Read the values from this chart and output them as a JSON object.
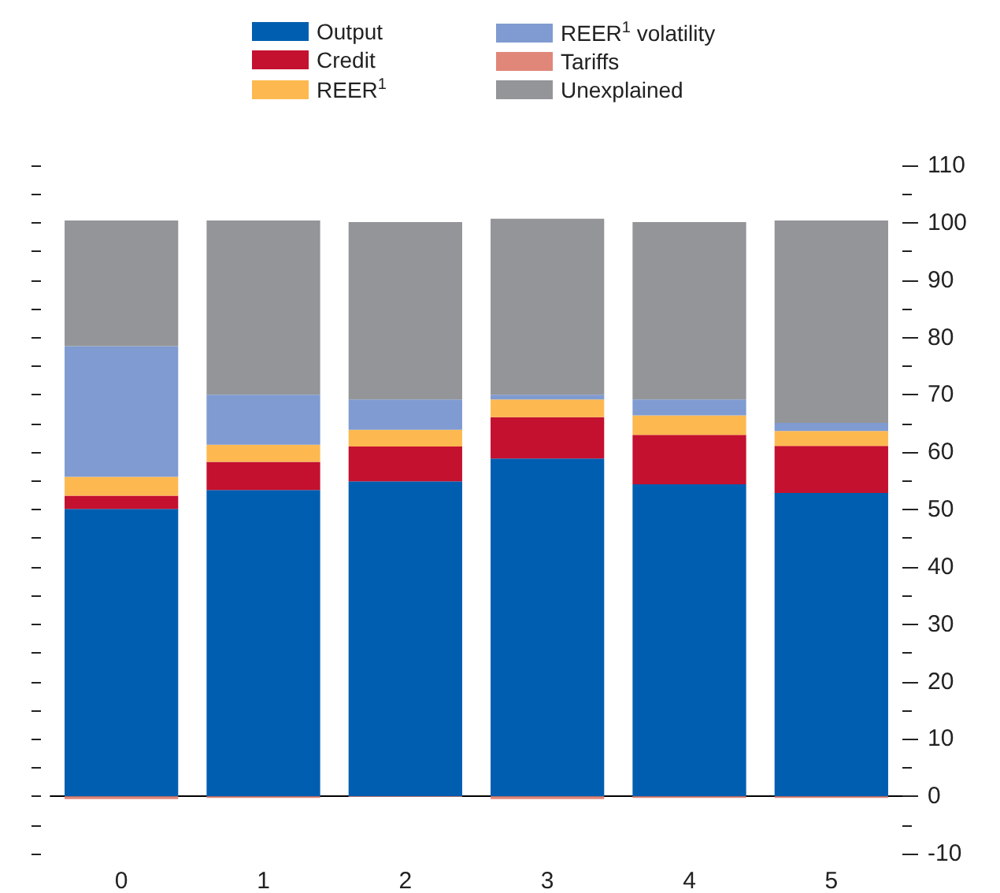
{
  "chart_data": {
    "type": "bar",
    "stacked": true,
    "categories": [
      "0",
      "1",
      "2",
      "3",
      "4",
      "5"
    ],
    "series": [
      {
        "name": "Output",
        "color": "#005eb0",
        "values": [
          50.1,
          53.4,
          54.9,
          58.9,
          54.4,
          52.9
        ]
      },
      {
        "name": "Credit",
        "color": "#c4112f",
        "values": [
          2.3,
          4.9,
          6.1,
          7.2,
          8.6,
          8.2
        ]
      },
      {
        "name": "REER$^{1}$",
        "color": "#fdb950",
        "values": [
          3.3,
          3.0,
          2.9,
          3.1,
          3.4,
          2.6
        ]
      },
      {
        "name": "REER$^{1}$ volatility",
        "color": "#7f9bd1",
        "values": [
          22.8,
          8.7,
          5.3,
          0.8,
          2.8,
          1.4
        ]
      },
      {
        "name": "Tariffs",
        "color": "#e0877a",
        "values": [
          -0.5,
          -0.3,
          -0.1,
          -0.5,
          -0.3,
          -0.3
        ]
      },
      {
        "name": "Unexplained",
        "color": "#939598",
        "values": [
          21.9,
          30.4,
          30.9,
          30.7,
          30.9,
          35.3
        ]
      }
    ],
    "ylim": [
      -10,
      110
    ],
    "yticks": [
      -10,
      0,
      10,
      20,
      30,
      40,
      50,
      60,
      70,
      80,
      90,
      100,
      110
    ],
    "ref_lines": [
      {
        "axis": "y",
        "value": 0,
        "color": "#000000"
      }
    ],
    "grid": false,
    "legend": "top"
  }
}
